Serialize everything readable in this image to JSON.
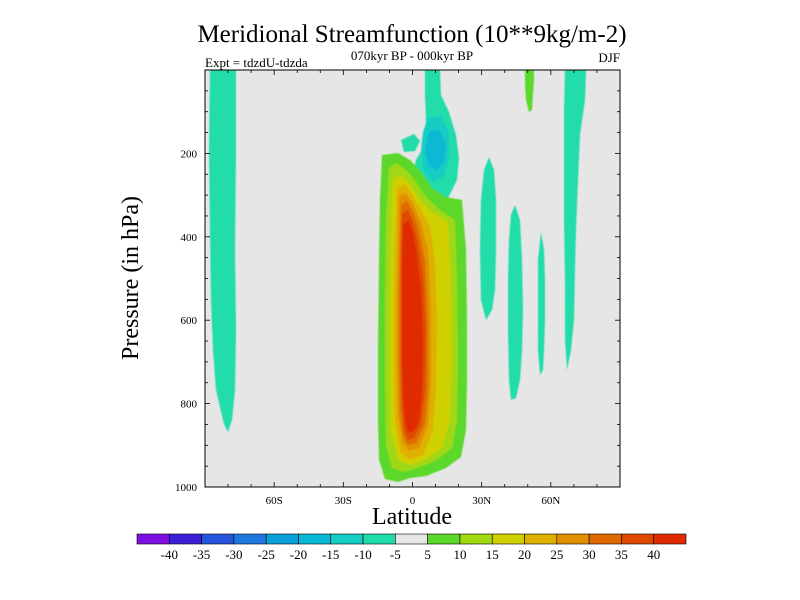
{
  "chart_data": {
    "type": "heatmap",
    "title": "Meridional Streamfunction (10**9kg/m-2)",
    "subtitle": "070kyr BP - 000kyr BP",
    "left_note": "Expt = tdzdU-tdzda",
    "right_note": "DJF",
    "xlabel": "Latitude",
    "ylabel": "Pressure (in hPa)",
    "xlim": [
      -90,
      90
    ],
    "ylim": [
      0,
      1000
    ],
    "y_inverted": true,
    "xticks": [
      {
        "value": -60,
        "label": "60S"
      },
      {
        "value": -30,
        "label": "30S"
      },
      {
        "value": 0,
        "label": "0"
      },
      {
        "value": 30,
        "label": "30N"
      },
      {
        "value": 60,
        "label": "60N"
      }
    ],
    "yticks": [
      {
        "value": 200,
        "label": "200"
      },
      {
        "value": 400,
        "label": "400"
      },
      {
        "value": 600,
        "label": "600"
      },
      {
        "value": 800,
        "label": "800"
      },
      {
        "value": 1000,
        "label": "1000"
      }
    ],
    "background_color": "#e6e6e6",
    "colorbar": {
      "labels": [
        "-40",
        "-35",
        "-30",
        "-25",
        "-20",
        "-15",
        "-10",
        "-5",
        "5",
        "10",
        "15",
        "20",
        "25",
        "30",
        "35",
        "40"
      ],
      "colors": [
        "#7d10e0",
        "#3c20d8",
        "#2455dc",
        "#1e78e0",
        "#0aa0dc",
        "#08b8d4",
        "#14cdc4",
        "#20dcaa",
        "#e6e6e6",
        "#5cd82a",
        "#a0d812",
        "#d0d000",
        "#e0b000",
        "#e09000",
        "#e06a00",
        "#e04a00",
        "#e02a00"
      ]
    },
    "features": [
      {
        "name": "southern high-latitude weak negative cell",
        "lat_range": [
          -88,
          -77
        ],
        "pressure_range": [
          0,
          870
        ],
        "value_class": "-5 to -10"
      },
      {
        "name": "equatorial positive overturning cell",
        "lat_range": [
          -14,
          22
        ],
        "pressure_range": [
          200,
          985
        ],
        "peak_value": "above 40",
        "peak_lat": 0,
        "peak_pressure": 650
      },
      {
        "name": "upper tropical negative cell",
        "lat_range": [
          -5,
          20
        ],
        "pressure_range": [
          0,
          235
        ],
        "peak_value": "-20 to -15",
        "peak_lat": 10,
        "peak_pressure": 180
      },
      {
        "name": "northern subtropical negative band",
        "lat_range": [
          30,
          36
        ],
        "pressure_range": [
          240,
          600
        ],
        "value_class": "-5 to -10"
      },
      {
        "name": "northern midlatitude negative band",
        "lat_range": [
          42,
          47
        ],
        "pressure_range": [
          310,
          800
        ],
        "value_class": "-5 to -10"
      },
      {
        "name": "northern upper positive sliver",
        "lat_range": [
          49,
          52
        ],
        "pressure_range": [
          0,
          95
        ],
        "value_class": "5 to 10"
      },
      {
        "name": "northern narrow negative band",
        "lat_range": [
          55,
          57
        ],
        "pressure_range": [
          390,
          730
        ],
        "value_class": "-5 to -10"
      },
      {
        "name": "northern high-latitude negative band",
        "lat_range": [
          62,
          71
        ],
        "pressure_range": [
          0,
          730
        ],
        "value_class": "-5 to -10"
      }
    ]
  }
}
